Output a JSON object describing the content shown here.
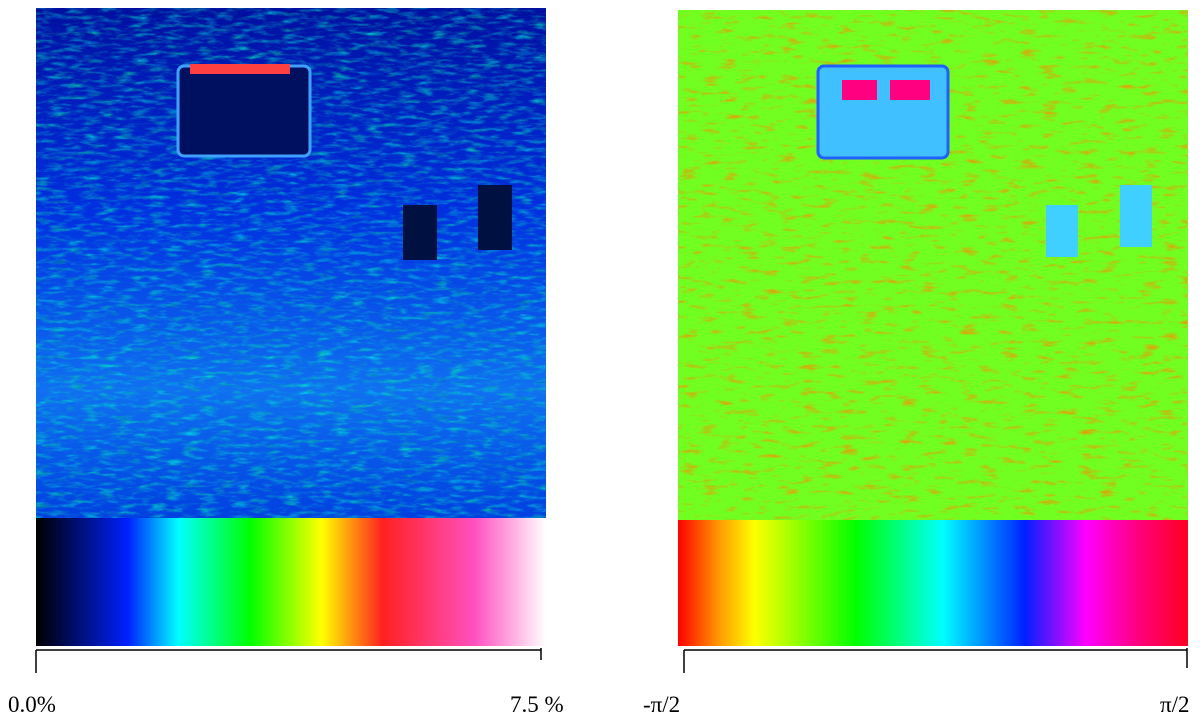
{
  "panels": [
    {
      "min_label": "0.0%",
      "max_label": "7.5 %"
    },
    {
      "min_label": "-π/2",
      "max_label": "π/2"
    }
  ]
}
